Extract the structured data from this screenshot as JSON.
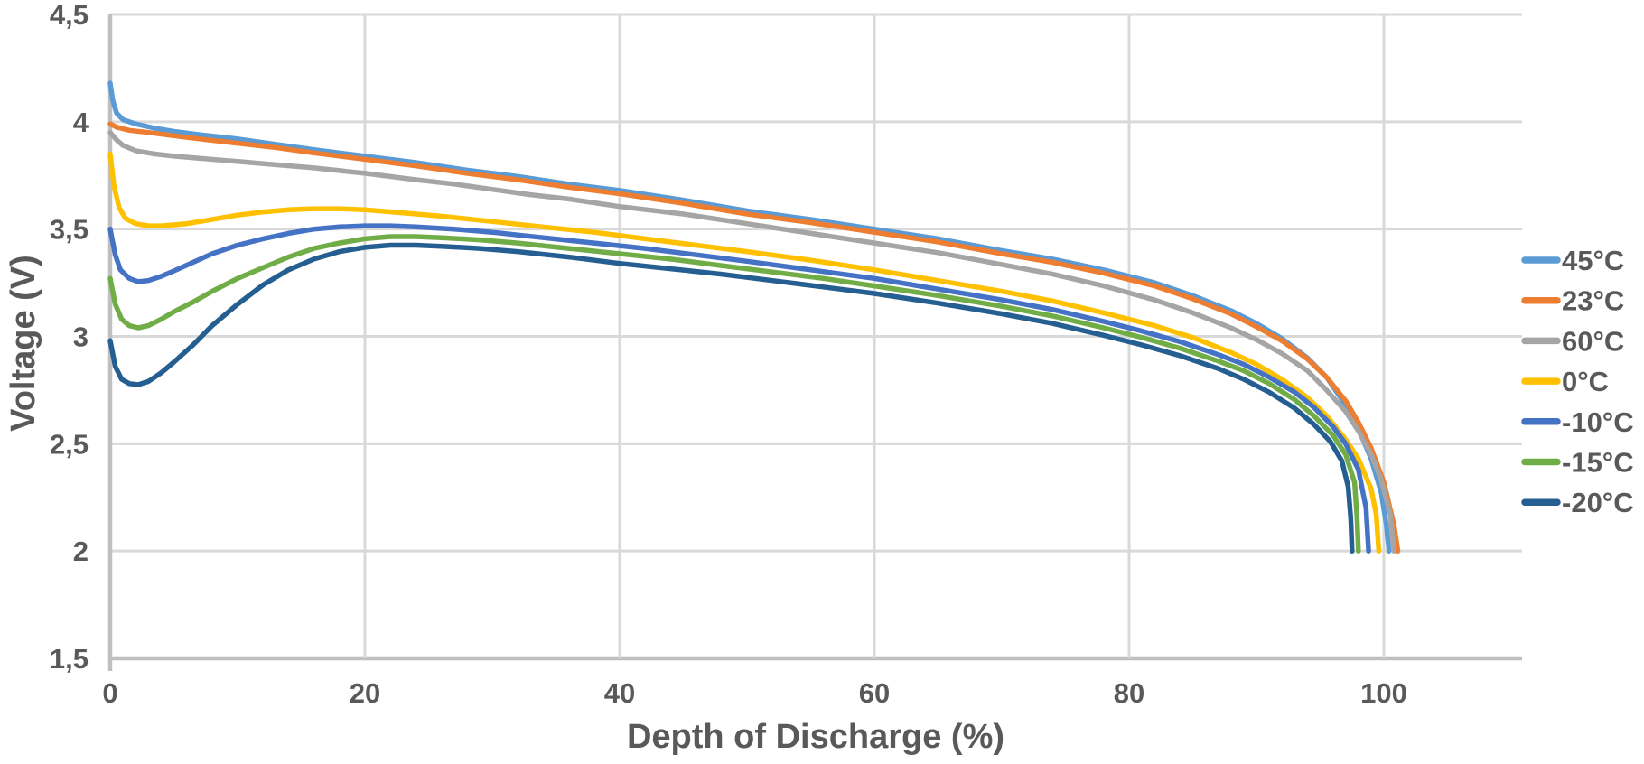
{
  "chart_data": {
    "type": "line",
    "title": "",
    "xlabel": "Depth of Discharge (%)",
    "ylabel": "Voltage (V)",
    "xlim": [
      0,
      110.85
    ],
    "ylim": [
      1.5,
      4.5
    ],
    "grid": true,
    "legend_position": "right",
    "x_ticks": [
      {
        "value": 0,
        "label": "0"
      },
      {
        "value": 20,
        "label": "20"
      },
      {
        "value": 40,
        "label": "40"
      },
      {
        "value": 60,
        "label": "60"
      },
      {
        "value": 80,
        "label": "80"
      },
      {
        "value": 100,
        "label": "100"
      }
    ],
    "y_ticks": [
      {
        "value": 4.5,
        "label": "4,5"
      },
      {
        "value": 4,
        "label": "4"
      },
      {
        "value": 3.5,
        "label": "3,5"
      },
      {
        "value": 3,
        "label": "3"
      },
      {
        "value": 2.5,
        "label": "2,5"
      },
      {
        "value": 2,
        "label": "2"
      },
      {
        "value": 1.5,
        "label": "1,5"
      }
    ],
    "grid_color": "#D9D9D9",
    "axis_line_color": "#BFBFBF",
    "text_color": "#595959",
    "series": [
      {
        "name": "45°C",
        "color": "#5B9BD5",
        "points": [
          [
            0,
            4.18
          ],
          [
            0.2,
            4.1
          ],
          [
            0.5,
            4.04
          ],
          [
            1,
            4.01
          ],
          [
            2,
            3.99
          ],
          [
            3.5,
            3.97
          ],
          [
            5,
            3.955
          ],
          [
            7,
            3.94
          ],
          [
            10,
            3.92
          ],
          [
            13,
            3.895
          ],
          [
            16,
            3.87
          ],
          [
            20,
            3.84
          ],
          [
            24,
            3.81
          ],
          [
            28,
            3.775
          ],
          [
            32,
            3.745
          ],
          [
            36,
            3.71
          ],
          [
            40,
            3.68
          ],
          [
            45,
            3.635
          ],
          [
            50,
            3.585
          ],
          [
            55,
            3.545
          ],
          [
            60,
            3.5
          ],
          [
            65,
            3.455
          ],
          [
            70,
            3.4
          ],
          [
            74,
            3.36
          ],
          [
            78,
            3.31
          ],
          [
            82,
            3.25
          ],
          [
            85,
            3.19
          ],
          [
            88,
            3.12
          ],
          [
            90,
            3.06
          ],
          [
            92,
            2.99
          ],
          [
            94,
            2.9
          ],
          [
            95.5,
            2.81
          ],
          [
            97,
            2.68
          ],
          [
            98,
            2.57
          ],
          [
            99,
            2.43
          ],
          [
            99.8,
            2.27
          ],
          [
            100.2,
            2.12
          ],
          [
            100.4,
            2.0
          ]
        ]
      },
      {
        "name": "23°C",
        "color": "#ED7D31",
        "points": [
          [
            0,
            3.99
          ],
          [
            0.5,
            3.975
          ],
          [
            1.5,
            3.96
          ],
          [
            3,
            3.95
          ],
          [
            5,
            3.935
          ],
          [
            7,
            3.92
          ],
          [
            10,
            3.9
          ],
          [
            13,
            3.88
          ],
          [
            16,
            3.855
          ],
          [
            20,
            3.825
          ],
          [
            24,
            3.795
          ],
          [
            28,
            3.76
          ],
          [
            32,
            3.73
          ],
          [
            36,
            3.695
          ],
          [
            40,
            3.665
          ],
          [
            45,
            3.62
          ],
          [
            50,
            3.57
          ],
          [
            55,
            3.53
          ],
          [
            60,
            3.485
          ],
          [
            65,
            3.44
          ],
          [
            70,
            3.385
          ],
          [
            74,
            3.345
          ],
          [
            78,
            3.295
          ],
          [
            82,
            3.235
          ],
          [
            85,
            3.175
          ],
          [
            88,
            3.105
          ],
          [
            90,
            3.045
          ],
          [
            92,
            2.98
          ],
          [
            94,
            2.895
          ],
          [
            95.5,
            2.81
          ],
          [
            97,
            2.7
          ],
          [
            98,
            2.6
          ],
          [
            99,
            2.48
          ],
          [
            100,
            2.32
          ],
          [
            100.8,
            2.12
          ],
          [
            101.1,
            2.0
          ]
        ]
      },
      {
        "name": "60°C",
        "color": "#A5A5A5",
        "points": [
          [
            0,
            3.95
          ],
          [
            0.5,
            3.915
          ],
          [
            1,
            3.89
          ],
          [
            2,
            3.865
          ],
          [
            3.5,
            3.85
          ],
          [
            5,
            3.84
          ],
          [
            7,
            3.83
          ],
          [
            10,
            3.815
          ],
          [
            13,
            3.8
          ],
          [
            16,
            3.785
          ],
          [
            20,
            3.76
          ],
          [
            24,
            3.73
          ],
          [
            27,
            3.71
          ],
          [
            30,
            3.685
          ],
          [
            33,
            3.66
          ],
          [
            36,
            3.64
          ],
          [
            40,
            3.605
          ],
          [
            45,
            3.57
          ],
          [
            50,
            3.525
          ],
          [
            55,
            3.48
          ],
          [
            60,
            3.435
          ],
          [
            65,
            3.39
          ],
          [
            70,
            3.335
          ],
          [
            74,
            3.29
          ],
          [
            78,
            3.235
          ],
          [
            82,
            3.17
          ],
          [
            85,
            3.11
          ],
          [
            88,
            3.04
          ],
          [
            90,
            2.985
          ],
          [
            92,
            2.92
          ],
          [
            94,
            2.84
          ],
          [
            95.5,
            2.75
          ],
          [
            97,
            2.65
          ],
          [
            98,
            2.56
          ],
          [
            99,
            2.45
          ],
          [
            99.8,
            2.33
          ],
          [
            100.5,
            2.17
          ],
          [
            100.8,
            2.0
          ]
        ]
      },
      {
        "name": "0°C",
        "color": "#FFC000",
        "points": [
          [
            0,
            3.85
          ],
          [
            0.3,
            3.7
          ],
          [
            0.7,
            3.6
          ],
          [
            1.2,
            3.55
          ],
          [
            2,
            3.525
          ],
          [
            3,
            3.515
          ],
          [
            4,
            3.515
          ],
          [
            6,
            3.525
          ],
          [
            8,
            3.545
          ],
          [
            10,
            3.565
          ],
          [
            12,
            3.58
          ],
          [
            14,
            3.59
          ],
          [
            16,
            3.595
          ],
          [
            18,
            3.595
          ],
          [
            20,
            3.59
          ],
          [
            23,
            3.575
          ],
          [
            26,
            3.56
          ],
          [
            30,
            3.535
          ],
          [
            34,
            3.51
          ],
          [
            38,
            3.485
          ],
          [
            42,
            3.455
          ],
          [
            46,
            3.425
          ],
          [
            50,
            3.395
          ],
          [
            55,
            3.355
          ],
          [
            60,
            3.31
          ],
          [
            65,
            3.26
          ],
          [
            70,
            3.21
          ],
          [
            74,
            3.165
          ],
          [
            78,
            3.11
          ],
          [
            82,
            3.05
          ],
          [
            85,
            2.995
          ],
          [
            88,
            2.925
          ],
          [
            90,
            2.87
          ],
          [
            92,
            2.8
          ],
          [
            94,
            2.715
          ],
          [
            95.5,
            2.63
          ],
          [
            97,
            2.52
          ],
          [
            98,
            2.43
          ],
          [
            99,
            2.29
          ],
          [
            99.4,
            2.17
          ],
          [
            99.6,
            2.0
          ]
        ]
      },
      {
        "name": "-10°C",
        "color": "#4472C4",
        "points": [
          [
            0,
            3.5
          ],
          [
            0.4,
            3.38
          ],
          [
            0.8,
            3.31
          ],
          [
            1.5,
            3.27
          ],
          [
            2.2,
            3.255
          ],
          [
            3,
            3.26
          ],
          [
            4,
            3.28
          ],
          [
            5,
            3.305
          ],
          [
            6.5,
            3.345
          ],
          [
            8,
            3.385
          ],
          [
            10,
            3.425
          ],
          [
            12,
            3.455
          ],
          [
            14,
            3.48
          ],
          [
            16,
            3.5
          ],
          [
            18,
            3.51
          ],
          [
            20,
            3.515
          ],
          [
            22,
            3.515
          ],
          [
            24,
            3.51
          ],
          [
            27,
            3.5
          ],
          [
            30,
            3.485
          ],
          [
            34,
            3.46
          ],
          [
            38,
            3.435
          ],
          [
            42,
            3.41
          ],
          [
            46,
            3.38
          ],
          [
            50,
            3.35
          ],
          [
            55,
            3.31
          ],
          [
            60,
            3.27
          ],
          [
            65,
            3.22
          ],
          [
            70,
            3.17
          ],
          [
            74,
            3.125
          ],
          [
            78,
            3.07
          ],
          [
            81,
            3.025
          ],
          [
            84,
            2.975
          ],
          [
            87,
            2.915
          ],
          [
            89,
            2.87
          ],
          [
            91,
            2.81
          ],
          [
            93,
            2.74
          ],
          [
            94.5,
            2.67
          ],
          [
            96,
            2.58
          ],
          [
            97,
            2.5
          ],
          [
            98,
            2.38
          ],
          [
            98.6,
            2.2
          ],
          [
            98.8,
            2.0
          ]
        ]
      },
      {
        "name": "-15°C",
        "color": "#70AD47",
        "points": [
          [
            0,
            3.27
          ],
          [
            0.4,
            3.15
          ],
          [
            0.9,
            3.08
          ],
          [
            1.5,
            3.05
          ],
          [
            2.2,
            3.04
          ],
          [
            3,
            3.05
          ],
          [
            4,
            3.08
          ],
          [
            5,
            3.115
          ],
          [
            6.5,
            3.16
          ],
          [
            8,
            3.21
          ],
          [
            10,
            3.27
          ],
          [
            12,
            3.32
          ],
          [
            14,
            3.37
          ],
          [
            16,
            3.41
          ],
          [
            18,
            3.435
          ],
          [
            20,
            3.455
          ],
          [
            22,
            3.465
          ],
          [
            24,
            3.465
          ],
          [
            26,
            3.46
          ],
          [
            29,
            3.45
          ],
          [
            32,
            3.435
          ],
          [
            36,
            3.41
          ],
          [
            40,
            3.385
          ],
          [
            44,
            3.36
          ],
          [
            48,
            3.33
          ],
          [
            52,
            3.3
          ],
          [
            56,
            3.27
          ],
          [
            60,
            3.235
          ],
          [
            65,
            3.19
          ],
          [
            70,
            3.14
          ],
          [
            74,
            3.095
          ],
          [
            78,
            3.04
          ],
          [
            81,
            2.995
          ],
          [
            84,
            2.945
          ],
          [
            87,
            2.885
          ],
          [
            89,
            2.84
          ],
          [
            91,
            2.78
          ],
          [
            93,
            2.705
          ],
          [
            94.5,
            2.63
          ],
          [
            96,
            2.54
          ],
          [
            97,
            2.45
          ],
          [
            97.7,
            2.32
          ],
          [
            97.9,
            2.15
          ],
          [
            98,
            2.0
          ]
        ]
      },
      {
        "name": "-20°C",
        "color": "#255E91",
        "points": [
          [
            0,
            2.98
          ],
          [
            0.4,
            2.86
          ],
          [
            0.9,
            2.8
          ],
          [
            1.5,
            2.78
          ],
          [
            2.2,
            2.775
          ],
          [
            3,
            2.79
          ],
          [
            4,
            2.83
          ],
          [
            5,
            2.88
          ],
          [
            6.5,
            2.96
          ],
          [
            8,
            3.05
          ],
          [
            10,
            3.15
          ],
          [
            12,
            3.24
          ],
          [
            14,
            3.31
          ],
          [
            16,
            3.36
          ],
          [
            18,
            3.395
          ],
          [
            20,
            3.415
          ],
          [
            22,
            3.425
          ],
          [
            24,
            3.425
          ],
          [
            26,
            3.42
          ],
          [
            29,
            3.41
          ],
          [
            32,
            3.395
          ],
          [
            36,
            3.37
          ],
          [
            40,
            3.34
          ],
          [
            44,
            3.315
          ],
          [
            48,
            3.29
          ],
          [
            52,
            3.26
          ],
          [
            56,
            3.23
          ],
          [
            60,
            3.2
          ],
          [
            65,
            3.155
          ],
          [
            70,
            3.105
          ],
          [
            74,
            3.06
          ],
          [
            78,
            3.005
          ],
          [
            81,
            2.96
          ],
          [
            84,
            2.91
          ],
          [
            87,
            2.85
          ],
          [
            89,
            2.8
          ],
          [
            91,
            2.74
          ],
          [
            93,
            2.665
          ],
          [
            94.5,
            2.59
          ],
          [
            95.8,
            2.51
          ],
          [
            96.7,
            2.42
          ],
          [
            97.2,
            2.3
          ],
          [
            97.4,
            2.15
          ],
          [
            97.5,
            2.0
          ]
        ]
      }
    ]
  }
}
